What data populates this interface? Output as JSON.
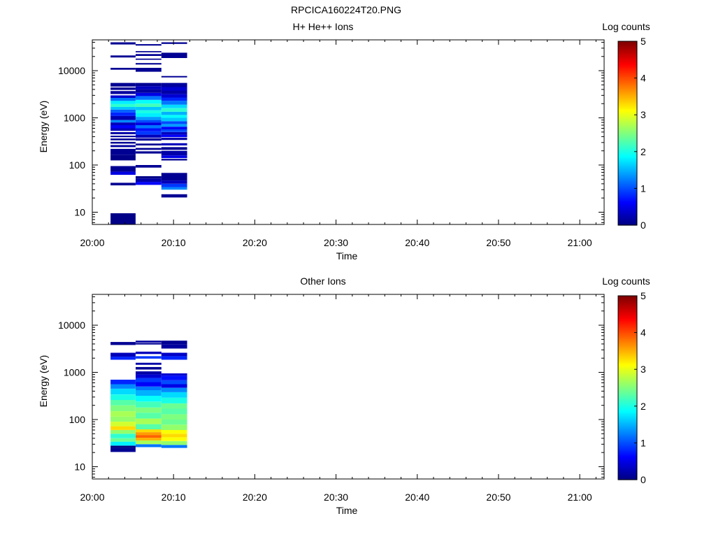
{
  "figure_title": "RPCICA160224T20.PNG",
  "colormap": [
    "#00007f",
    "#0000ff",
    "#007fff",
    "#00ffff",
    "#7fff7f",
    "#ffff00",
    "#ff7f00",
    "#ff0000",
    "#7f0000"
  ],
  "chart_data": [
    {
      "type": "heatmap",
      "title": "H+ He++ Ions",
      "xlabel": "Time",
      "ylabel": "Energy (eV)",
      "yscale": "log",
      "ylim": [
        5.5,
        45000
      ],
      "xlim_minutes": [
        0,
        63
      ],
      "x_ticks": [
        "20:00",
        "20:10",
        "20:20",
        "20:30",
        "20:40",
        "20:50",
        "21:00"
      ],
      "y_ticks": [
        "10",
        "100",
        "1000",
        "10000"
      ],
      "colorbar": {
        "label": "Log counts",
        "range": [
          0,
          5
        ],
        "ticks": [
          "0",
          "1",
          "2",
          "3",
          "4",
          "5"
        ]
      },
      "columns": [
        {
          "t_start": "20:02:15",
          "t_end": "20:05:20",
          "cells": [
            {
              "e_lo": 5.6,
              "e_hi": 9.5,
              "v": 0.05
            },
            {
              "e_lo": 37,
              "e_hi": 42,
              "v": 0.1
            },
            {
              "e_lo": 62,
              "e_hi": 72,
              "v": 0.5
            },
            {
              "e_lo": 72,
              "e_hi": 95,
              "v": 0.1
            },
            {
              "e_lo": 125,
              "e_hi": 165,
              "v": 0.05
            },
            {
              "e_lo": 165,
              "e_hi": 220,
              "v": 0.1
            },
            {
              "e_lo": 240,
              "e_hi": 265,
              "v": 0.15
            },
            {
              "e_lo": 285,
              "e_hi": 310,
              "v": 0.1
            },
            {
              "e_lo": 335,
              "e_hi": 365,
              "v": 0.1
            },
            {
              "e_lo": 390,
              "e_hi": 420,
              "v": 0.15
            },
            {
              "e_lo": 450,
              "e_hi": 500,
              "v": 0.2
            },
            {
              "e_lo": 530,
              "e_hi": 600,
              "v": 0.3
            },
            {
              "e_lo": 600,
              "e_hi": 700,
              "v": 0.6
            },
            {
              "e_lo": 700,
              "e_hi": 800,
              "v": 0.3
            },
            {
              "e_lo": 800,
              "e_hi": 900,
              "v": 1.3
            },
            {
              "e_lo": 900,
              "e_hi": 1100,
              "v": 0.25
            },
            {
              "e_lo": 1100,
              "e_hi": 1300,
              "v": 0.8
            },
            {
              "e_lo": 1300,
              "e_hi": 1500,
              "v": 1.1
            },
            {
              "e_lo": 1500,
              "e_hi": 1700,
              "v": 1.6
            },
            {
              "e_lo": 1700,
              "e_hi": 1950,
              "v": 2.1
            },
            {
              "e_lo": 1950,
              "e_hi": 2300,
              "v": 1.8
            },
            {
              "e_lo": 2300,
              "e_hi": 2650,
              "v": 1.2
            },
            {
              "e_lo": 2650,
              "e_hi": 3000,
              "v": 0.4
            },
            {
              "e_lo": 3200,
              "e_hi": 3700,
              "v": 0.15
            },
            {
              "e_lo": 3900,
              "e_hi": 4400,
              "v": 0.1
            },
            {
              "e_lo": 4600,
              "e_hi": 5500,
              "v": 0.1
            },
            {
              "e_lo": 10500,
              "e_hi": 11500,
              "v": 0.1
            },
            {
              "e_lo": 19000,
              "e_hi": 21000,
              "v": 0.1
            },
            {
              "e_lo": 36000,
              "e_hi": 40000,
              "v": 0.1
            }
          ]
        },
        {
          "t_start": "20:05:20",
          "t_end": "20:08:30",
          "cells": [
            {
              "e_lo": 38,
              "e_hi": 44,
              "v": 0.6
            },
            {
              "e_lo": 44,
              "e_hi": 52,
              "v": 0.2
            },
            {
              "e_lo": 52,
              "e_hi": 58,
              "v": 0.05
            },
            {
              "e_lo": 88,
              "e_hi": 100,
              "v": 0.1
            },
            {
              "e_lo": 175,
              "e_hi": 195,
              "v": 0.1
            },
            {
              "e_lo": 210,
              "e_hi": 230,
              "v": 0.1
            },
            {
              "e_lo": 260,
              "e_hi": 285,
              "v": 0.1
            },
            {
              "e_lo": 330,
              "e_hi": 370,
              "v": 0.15
            },
            {
              "e_lo": 380,
              "e_hi": 440,
              "v": 0.3
            },
            {
              "e_lo": 440,
              "e_hi": 520,
              "v": 0.9
            },
            {
              "e_lo": 520,
              "e_hi": 600,
              "v": 0.7
            },
            {
              "e_lo": 600,
              "e_hi": 700,
              "v": 1.2
            },
            {
              "e_lo": 700,
              "e_hi": 800,
              "v": 0.5
            },
            {
              "e_lo": 800,
              "e_hi": 900,
              "v": 1.0
            },
            {
              "e_lo": 900,
              "e_hi": 1050,
              "v": 1.4
            },
            {
              "e_lo": 1050,
              "e_hi": 1250,
              "v": 1.8
            },
            {
              "e_lo": 1250,
              "e_hi": 1450,
              "v": 2.0
            },
            {
              "e_lo": 1450,
              "e_hi": 1700,
              "v": 1.6
            },
            {
              "e_lo": 1700,
              "e_hi": 2000,
              "v": 2.2
            },
            {
              "e_lo": 2000,
              "e_hi": 2400,
              "v": 1.9
            },
            {
              "e_lo": 2400,
              "e_hi": 2900,
              "v": 1.2
            },
            {
              "e_lo": 2900,
              "e_hi": 3400,
              "v": 0.5
            },
            {
              "e_lo": 3400,
              "e_hi": 4000,
              "v": 0.15
            },
            {
              "e_lo": 4000,
              "e_hi": 4700,
              "v": 0.3
            },
            {
              "e_lo": 4700,
              "e_hi": 5500,
              "v": 0.1
            },
            {
              "e_lo": 9500,
              "e_hi": 11500,
              "v": 0.1
            },
            {
              "e_lo": 13500,
              "e_hi": 14500,
              "v": 0.1
            },
            {
              "e_lo": 17000,
              "e_hi": 18000,
              "v": 0.1
            },
            {
              "e_lo": 20500,
              "e_hi": 22500,
              "v": 0.1
            },
            {
              "e_lo": 24500,
              "e_hi": 26000,
              "v": 0.1
            },
            {
              "e_lo": 34000,
              "e_hi": 36500,
              "v": 0.1
            }
          ]
        },
        {
          "t_start": "20:08:30",
          "t_end": "20:11:40",
          "cells": [
            {
              "e_lo": 20.5,
              "e_hi": 24,
              "v": 0.1
            },
            {
              "e_lo": 30,
              "e_hi": 34,
              "v": 1.3
            },
            {
              "e_lo": 34,
              "e_hi": 40,
              "v": 0.9
            },
            {
              "e_lo": 40,
              "e_hi": 47,
              "v": 0.3
            },
            {
              "e_lo": 47,
              "e_hi": 68,
              "v": 0.1
            },
            {
              "e_lo": 125,
              "e_hi": 135,
              "v": 0.1
            },
            {
              "e_lo": 140,
              "e_hi": 160,
              "v": 0.5
            },
            {
              "e_lo": 160,
              "e_hi": 200,
              "v": 0.2
            },
            {
              "e_lo": 210,
              "e_hi": 240,
              "v": 0.1
            },
            {
              "e_lo": 260,
              "e_hi": 290,
              "v": 0.3
            },
            {
              "e_lo": 340,
              "e_hi": 380,
              "v": 0.2
            },
            {
              "e_lo": 390,
              "e_hi": 440,
              "v": 0.6
            },
            {
              "e_lo": 440,
              "e_hi": 500,
              "v": 0.3
            },
            {
              "e_lo": 500,
              "e_hi": 570,
              "v": 1.0
            },
            {
              "e_lo": 570,
              "e_hi": 650,
              "v": 0.6
            },
            {
              "e_lo": 650,
              "e_hi": 740,
              "v": 1.4
            },
            {
              "e_lo": 740,
              "e_hi": 850,
              "v": 1.0
            },
            {
              "e_lo": 850,
              "e_hi": 1000,
              "v": 1.6
            },
            {
              "e_lo": 1000,
              "e_hi": 1150,
              "v": 1.9
            },
            {
              "e_lo": 1150,
              "e_hi": 1350,
              "v": 1.5
            },
            {
              "e_lo": 1350,
              "e_hi": 1600,
              "v": 2.1
            },
            {
              "e_lo": 1600,
              "e_hi": 1900,
              "v": 1.7
            },
            {
              "e_lo": 1900,
              "e_hi": 2300,
              "v": 1.2
            },
            {
              "e_lo": 2300,
              "e_hi": 2700,
              "v": 0.8
            },
            {
              "e_lo": 2700,
              "e_hi": 3200,
              "v": 0.4
            },
            {
              "e_lo": 3200,
              "e_hi": 3800,
              "v": 0.2
            },
            {
              "e_lo": 3800,
              "e_hi": 4500,
              "v": 0.4
            },
            {
              "e_lo": 4500,
              "e_hi": 5500,
              "v": 0.15
            },
            {
              "e_lo": 7200,
              "e_hi": 7700,
              "v": 0.1
            },
            {
              "e_lo": 18500,
              "e_hi": 24000,
              "v": 0.1
            },
            {
              "e_lo": 37000,
              "e_hi": 40000,
              "v": 0.1
            }
          ]
        }
      ]
    },
    {
      "type": "heatmap",
      "title": "Other Ions",
      "xlabel": "Time",
      "ylabel": "Energy (eV)",
      "yscale": "log",
      "ylim": [
        5.5,
        45000
      ],
      "xlim_minutes": [
        0,
        63
      ],
      "x_ticks": [
        "20:00",
        "20:10",
        "20:20",
        "20:30",
        "20:40",
        "20:50",
        "21:00"
      ],
      "y_ticks": [
        "10",
        "100",
        "1000",
        "10000"
      ],
      "colorbar": {
        "label": "Log counts",
        "range": [
          0,
          5
        ],
        "ticks": [
          "0",
          "1",
          "2",
          "3",
          "4",
          "5"
        ]
      },
      "columns": [
        {
          "t_start": "20:02:15",
          "t_end": "20:05:20",
          "cells": [
            {
              "e_lo": 20.5,
              "e_hi": 25,
              "v": 0.1
            },
            {
              "e_lo": 25,
              "e_hi": 28,
              "v": 0.0
            },
            {
              "e_lo": 28,
              "e_hi": 34,
              "v": 1.8
            },
            {
              "e_lo": 34,
              "e_hi": 40,
              "v": 2.4
            },
            {
              "e_lo": 40,
              "e_hi": 50,
              "v": 2.1
            },
            {
              "e_lo": 50,
              "e_hi": 60,
              "v": 2.6
            },
            {
              "e_lo": 60,
              "e_hi": 72,
              "v": 3.3
            },
            {
              "e_lo": 72,
              "e_hi": 90,
              "v": 2.9
            },
            {
              "e_lo": 90,
              "e_hi": 115,
              "v": 2.6
            },
            {
              "e_lo": 115,
              "e_hi": 150,
              "v": 2.7
            },
            {
              "e_lo": 150,
              "e_hi": 200,
              "v": 2.5
            },
            {
              "e_lo": 200,
              "e_hi": 260,
              "v": 2.3
            },
            {
              "e_lo": 260,
              "e_hi": 340,
              "v": 2.0
            },
            {
              "e_lo": 340,
              "e_hi": 450,
              "v": 1.7
            },
            {
              "e_lo": 450,
              "e_hi": 560,
              "v": 1.3
            },
            {
              "e_lo": 560,
              "e_hi": 700,
              "v": 0.8
            },
            {
              "e_lo": 1850,
              "e_hi": 2150,
              "v": 0.8
            },
            {
              "e_lo": 2150,
              "e_hi": 2600,
              "v": 0.3
            },
            {
              "e_lo": 3800,
              "e_hi": 4400,
              "v": 0.1
            }
          ]
        },
        {
          "t_start": "20:05:20",
          "t_end": "20:08:30",
          "cells": [
            {
              "e_lo": 26,
              "e_hi": 30,
              "v": 1.2
            },
            {
              "e_lo": 30,
              "e_hi": 36,
              "v": 2.7
            },
            {
              "e_lo": 36,
              "e_hi": 41,
              "v": 3.5
            },
            {
              "e_lo": 41,
              "e_hi": 47,
              "v": 3.9
            },
            {
              "e_lo": 47,
              "e_hi": 54,
              "v": 3.6
            },
            {
              "e_lo": 54,
              "e_hi": 62,
              "v": 3.3
            },
            {
              "e_lo": 62,
              "e_hi": 80,
              "v": 2.3
            },
            {
              "e_lo": 80,
              "e_hi": 105,
              "v": 2.7
            },
            {
              "e_lo": 105,
              "e_hi": 140,
              "v": 2.3
            },
            {
              "e_lo": 140,
              "e_hi": 180,
              "v": 2.5
            },
            {
              "e_lo": 180,
              "e_hi": 240,
              "v": 2.2
            },
            {
              "e_lo": 240,
              "e_hi": 320,
              "v": 1.9
            },
            {
              "e_lo": 320,
              "e_hi": 420,
              "v": 1.5
            },
            {
              "e_lo": 420,
              "e_hi": 500,
              "v": 1.2
            },
            {
              "e_lo": 500,
              "e_hi": 620,
              "v": 0.6
            },
            {
              "e_lo": 620,
              "e_hi": 760,
              "v": 0.9
            },
            {
              "e_lo": 760,
              "e_hi": 900,
              "v": 0.4
            },
            {
              "e_lo": 900,
              "e_hi": 1050,
              "v": 0.2
            },
            {
              "e_lo": 1150,
              "e_hi": 1300,
              "v": 0.1
            },
            {
              "e_lo": 1450,
              "e_hi": 1600,
              "v": 0.2
            },
            {
              "e_lo": 1950,
              "e_hi": 2200,
              "v": 0.9
            },
            {
              "e_lo": 2450,
              "e_hi": 2750,
              "v": 0.3
            },
            {
              "e_lo": 3900,
              "e_hi": 4200,
              "v": 0.1
            },
            {
              "e_lo": 4300,
              "e_hi": 4700,
              "v": 0.15
            }
          ]
        },
        {
          "t_start": "20:08:30",
          "t_end": "20:11:40",
          "cells": [
            {
              "e_lo": 25,
              "e_hi": 29,
              "v": 1.2
            },
            {
              "e_lo": 29,
              "e_hi": 35,
              "v": 2.6
            },
            {
              "e_lo": 35,
              "e_hi": 42,
              "v": 3.1
            },
            {
              "e_lo": 42,
              "e_hi": 50,
              "v": 3.3
            },
            {
              "e_lo": 50,
              "e_hi": 60,
              "v": 3.1
            },
            {
              "e_lo": 60,
              "e_hi": 78,
              "v": 2.6
            },
            {
              "e_lo": 78,
              "e_hi": 100,
              "v": 2.4
            },
            {
              "e_lo": 100,
              "e_hi": 130,
              "v": 2.5
            },
            {
              "e_lo": 130,
              "e_hi": 170,
              "v": 2.3
            },
            {
              "e_lo": 170,
              "e_hi": 220,
              "v": 2.4
            },
            {
              "e_lo": 220,
              "e_hi": 290,
              "v": 2.0
            },
            {
              "e_lo": 290,
              "e_hi": 380,
              "v": 1.7
            },
            {
              "e_lo": 380,
              "e_hi": 470,
              "v": 1.3
            },
            {
              "e_lo": 470,
              "e_hi": 560,
              "v": 0.5
            },
            {
              "e_lo": 560,
              "e_hi": 680,
              "v": 1.0
            },
            {
              "e_lo": 680,
              "e_hi": 850,
              "v": 0.7
            },
            {
              "e_lo": 850,
              "e_hi": 950,
              "v": 0.4
            },
            {
              "e_lo": 1850,
              "e_hi": 2200,
              "v": 0.8
            },
            {
              "e_lo": 2200,
              "e_hi": 2600,
              "v": 0.35
            },
            {
              "e_lo": 3200,
              "e_hi": 3900,
              "v": 0.15
            },
            {
              "e_lo": 3900,
              "e_hi": 4700,
              "v": 0.1
            }
          ]
        }
      ]
    }
  ]
}
